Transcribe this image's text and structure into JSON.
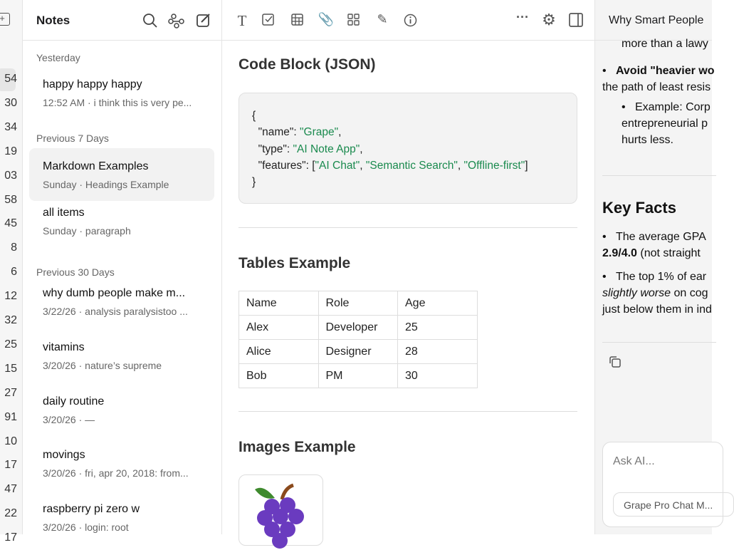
{
  "rail": {
    "counts": [
      "54",
      "30",
      "34",
      "19",
      "03",
      "58",
      "45",
      "8",
      "6",
      "12",
      "32",
      "25",
      "15",
      "27",
      "91",
      "10",
      "17",
      "47",
      "22",
      "17"
    ]
  },
  "notes": {
    "title": "Notes",
    "sections": [
      {
        "label": "Yesterday",
        "items": [
          {
            "title": "happy happy happy",
            "subtitle": "12:52 AM · i think this is very pe..."
          }
        ]
      },
      {
        "label": "Previous 7 Days",
        "items": [
          {
            "title": "Markdown Examples",
            "subtitle": "Sunday · Headings Example",
            "active": true
          },
          {
            "title": "all items",
            "subtitle": "Sunday · paragraph"
          }
        ]
      },
      {
        "label": "Previous 30 Days",
        "items": [
          {
            "title": "why dumb people make m...",
            "subtitle": "3/22/26 · analysis paralysistoo ..."
          },
          {
            "title": "vitamins",
            "subtitle": "3/20/26 · nature’s supreme"
          },
          {
            "title": "daily routine",
            "subtitle": "3/20/26 · —"
          },
          {
            "title": "movings",
            "subtitle": "3/20/26 · fri, apr 20, 2018: from..."
          },
          {
            "title": "raspberry pi zero w",
            "subtitle": "3/20/26 · login: root"
          }
        ]
      }
    ]
  },
  "editor": {
    "code_heading": "Code Block (JSON)",
    "code": {
      "open": "{",
      "name_key": "  \"name\": ",
      "name_val": "\"Grape\"",
      "type_key": "  \"type\": ",
      "type_val": "\"AI Note App\"",
      "feat_key": "  \"features\": [",
      "f1": "\"AI Chat\"",
      "f2": "\"Semantic Search\"",
      "f3": "\"Offline-first\"",
      "close": "}"
    },
    "tables_heading": "Tables Example",
    "table": {
      "headers": [
        "Name",
        "Role",
        "Age"
      ],
      "rows": [
        [
          "Alex",
          "Developer",
          "25"
        ],
        [
          "Alice",
          "Designer",
          "28"
        ],
        [
          "Bob",
          "PM",
          "30"
        ]
      ]
    },
    "images_heading": "Images Example"
  },
  "right": {
    "title": "Why Smart People",
    "lines": [
      "more than a lawy",
      "Avoid \"heavier wo",
      "the path of least resis",
      "Example: Corp",
      "entrepreneurial p",
      "hurts less."
    ],
    "key_facts": "Key Facts",
    "facts": [
      "The average GPA",
      "2.9/4.0",
      "(not straight",
      "The top 1% of ear",
      "slightly worse",
      "on cog",
      "just below them in ind"
    ],
    "ask_placeholder": "Ask AI...",
    "model": "Grape Pro Chat M..."
  },
  "colors": {
    "string": "#1a8a4e",
    "selected": "#f2f2f2"
  }
}
